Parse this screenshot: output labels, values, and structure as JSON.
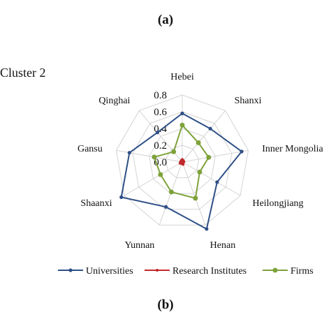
{
  "figure": {
    "label_top": "(a)",
    "cluster_title": "Cluster 2",
    "label_bottom": "(b)"
  },
  "colors": {
    "universities": "#2e4f86",
    "research_institutes": "#c0282c",
    "firms": "#7ea23a",
    "grid": "#d4d4d4"
  },
  "chart_data": {
    "type": "radar",
    "categories": [
      "Hebei",
      "Shanxi",
      "Inner Mongolia",
      "Heilongjiang",
      "Henan",
      "Yunnan",
      "Shaanxi",
      "Gansu",
      "Qinghai"
    ],
    "ylim": [
      0,
      0.8
    ],
    "ticks": [
      "0.0",
      "0.2",
      "0.4",
      "0.6",
      "0.8"
    ],
    "grid": true,
    "legend_position": "bottom",
    "series": [
      {
        "name": "Universities",
        "values": [
          0.58,
          0.52,
          0.72,
          0.48,
          0.85,
          0.57,
          0.84,
          0.64,
          0.46
        ]
      },
      {
        "name": "Research Institutes",
        "values": [
          0.03,
          0.02,
          0.02,
          0.01,
          0.03,
          0.02,
          0.03,
          0.02,
          0.02
        ]
      },
      {
        "name": "Firms",
        "values": [
          0.44,
          0.3,
          0.32,
          0.24,
          0.46,
          0.38,
          0.3,
          0.34,
          0.16
        ]
      }
    ]
  }
}
